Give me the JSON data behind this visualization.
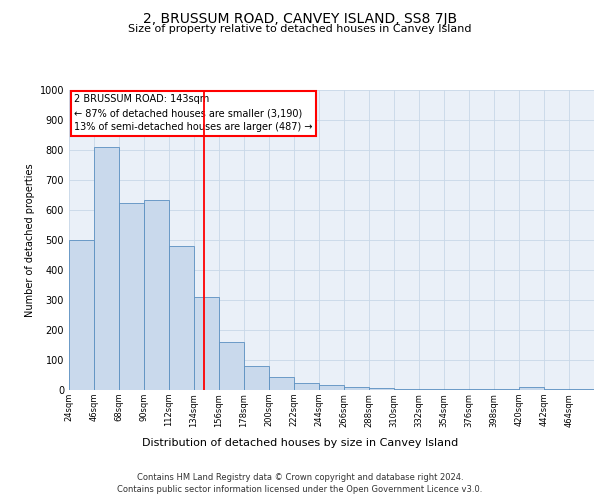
{
  "title": "2, BRUSSUM ROAD, CANVEY ISLAND, SS8 7JB",
  "subtitle": "Size of property relative to detached houses in Canvey Island",
  "xlabel": "Distribution of detached houses by size in Canvey Island",
  "ylabel": "Number of detached properties",
  "footer_line1": "Contains HM Land Registry data © Crown copyright and database right 2024.",
  "footer_line2": "Contains public sector information licensed under the Open Government Licence v3.0.",
  "bins": [
    24,
    46,
    68,
    90,
    112,
    134,
    156,
    178,
    200,
    222,
    244,
    266,
    288,
    310,
    332,
    354,
    376,
    398,
    420,
    442,
    464
  ],
  "bin_labels": [
    "24sqm",
    "46sqm",
    "68sqm",
    "90sqm",
    "112sqm",
    "134sqm",
    "156sqm",
    "178sqm",
    "200sqm",
    "222sqm",
    "244sqm",
    "266sqm",
    "288sqm",
    "310sqm",
    "332sqm",
    "354sqm",
    "376sqm",
    "398sqm",
    "420sqm",
    "442sqm",
    "464sqm"
  ],
  "values": [
    500,
    810,
    625,
    635,
    480,
    310,
    160,
    80,
    45,
    22,
    18,
    10,
    8,
    5,
    3,
    2,
    2,
    2,
    10,
    2,
    2
  ],
  "bar_color": "#c9d9ec",
  "bar_edge_color": "#5a8fc0",
  "red_line_x": 143,
  "ylim": [
    0,
    1000
  ],
  "yticks": [
    0,
    100,
    200,
    300,
    400,
    500,
    600,
    700,
    800,
    900,
    1000
  ],
  "annotation_box_text_line1": "2 BRUSSUM ROAD: 143sqm",
  "annotation_box_text_line2": "← 87% of detached houses are smaller (3,190)",
  "annotation_box_text_line3": "13% of semi-detached houses are larger (487) →",
  "annotation_box_color": "white",
  "annotation_box_edge_color": "red",
  "grid_color": "#c8d8e8",
  "background_color": "#eaf0f8",
  "title_fontsize": 10,
  "subtitle_fontsize": 8,
  "footer_fontsize": 6,
  "ylabel_fontsize": 7,
  "xlabel_fontsize": 8,
  "ytick_fontsize": 7,
  "xtick_fontsize": 6
}
